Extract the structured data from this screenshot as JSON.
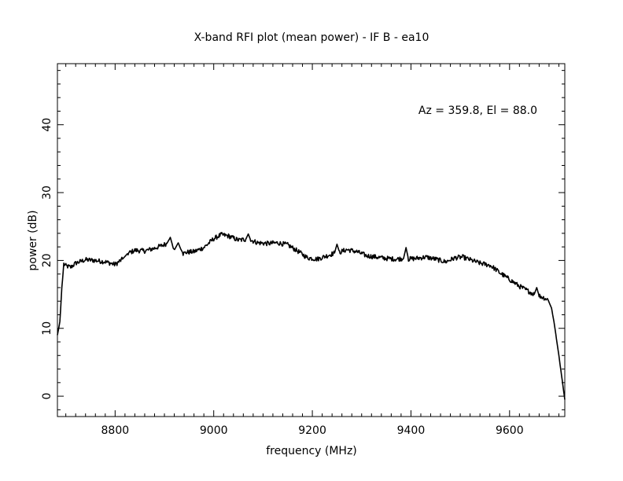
{
  "chart_data": {
    "type": "line",
    "title": "X-band RFI plot (mean power) - IF B - ea10",
    "xlabel": "frequency (MHz)",
    "ylabel": "power (dB)",
    "annotation": "Az = 359.8, El = 88.0",
    "xlim": [
      8683,
      9712
    ],
    "ylim": [
      -3,
      49
    ],
    "x_major_ticks": [
      8800,
      9000,
      9200,
      9400,
      9600
    ],
    "x_tick_labels": [
      "8800",
      "9000",
      "9200",
      "9400",
      "9600"
    ],
    "x_minor_step": 20,
    "y_major_ticks": [
      0,
      10,
      20,
      30,
      40
    ],
    "y_tick_labels": [
      "0",
      "10",
      "20",
      "30",
      "40"
    ],
    "y_minor_step": 2,
    "grid": false,
    "line_color": "#000000",
    "series": [
      {
        "x": [
          8683,
          8688,
          8692,
          8696,
          8700,
          8710,
          8720,
          8740,
          8760,
          8780,
          8800,
          8815,
          8825,
          8840,
          8860,
          8880,
          8895,
          8905,
          8912,
          8917,
          8922,
          8928,
          8933,
          8938,
          8945,
          8960,
          8980,
          9000,
          9015,
          9030,
          9050,
          9065,
          9070,
          9075,
          9090,
          9110,
          9130,
          9150,
          9170,
          9190,
          9210,
          9230,
          9245,
          9250,
          9255,
          9270,
          9290,
          9310,
          9330,
          9350,
          9370,
          9385,
          9390,
          9395,
          9410,
          9430,
          9450,
          9470,
          9490,
          9505,
          9520,
          9540,
          9560,
          9570,
          9580,
          9600,
          9620,
          9640,
          9650,
          9655,
          9660,
          9670,
          9678,
          9685,
          9690,
          9700,
          9712
        ],
        "y": [
          9,
          11,
          16,
          19.5,
          19.2,
          19,
          19.6,
          20.1,
          20,
          19.8,
          19.4,
          20.2,
          21,
          21.5,
          21.4,
          21.8,
          22.2,
          22.5,
          23.4,
          22.1,
          21.8,
          22.6,
          21.7,
          21,
          21.2,
          21.3,
          21.9,
          23.2,
          23.8,
          23.6,
          23,
          23.1,
          23.9,
          23,
          22.6,
          22.5,
          22.6,
          22.3,
          21.4,
          20.4,
          20.2,
          20.7,
          21.1,
          22.4,
          21.2,
          21.6,
          21.3,
          20.7,
          20.5,
          20.3,
          20.2,
          20.3,
          21.9,
          20.2,
          20.3,
          20.5,
          20.2,
          19.8,
          20.4,
          20.5,
          20.1,
          19.6,
          19.3,
          18.8,
          18.2,
          17.2,
          16.2,
          15.4,
          15,
          16,
          14.8,
          14.5,
          14.2,
          13,
          11,
          6,
          -0.5
        ]
      }
    ]
  }
}
